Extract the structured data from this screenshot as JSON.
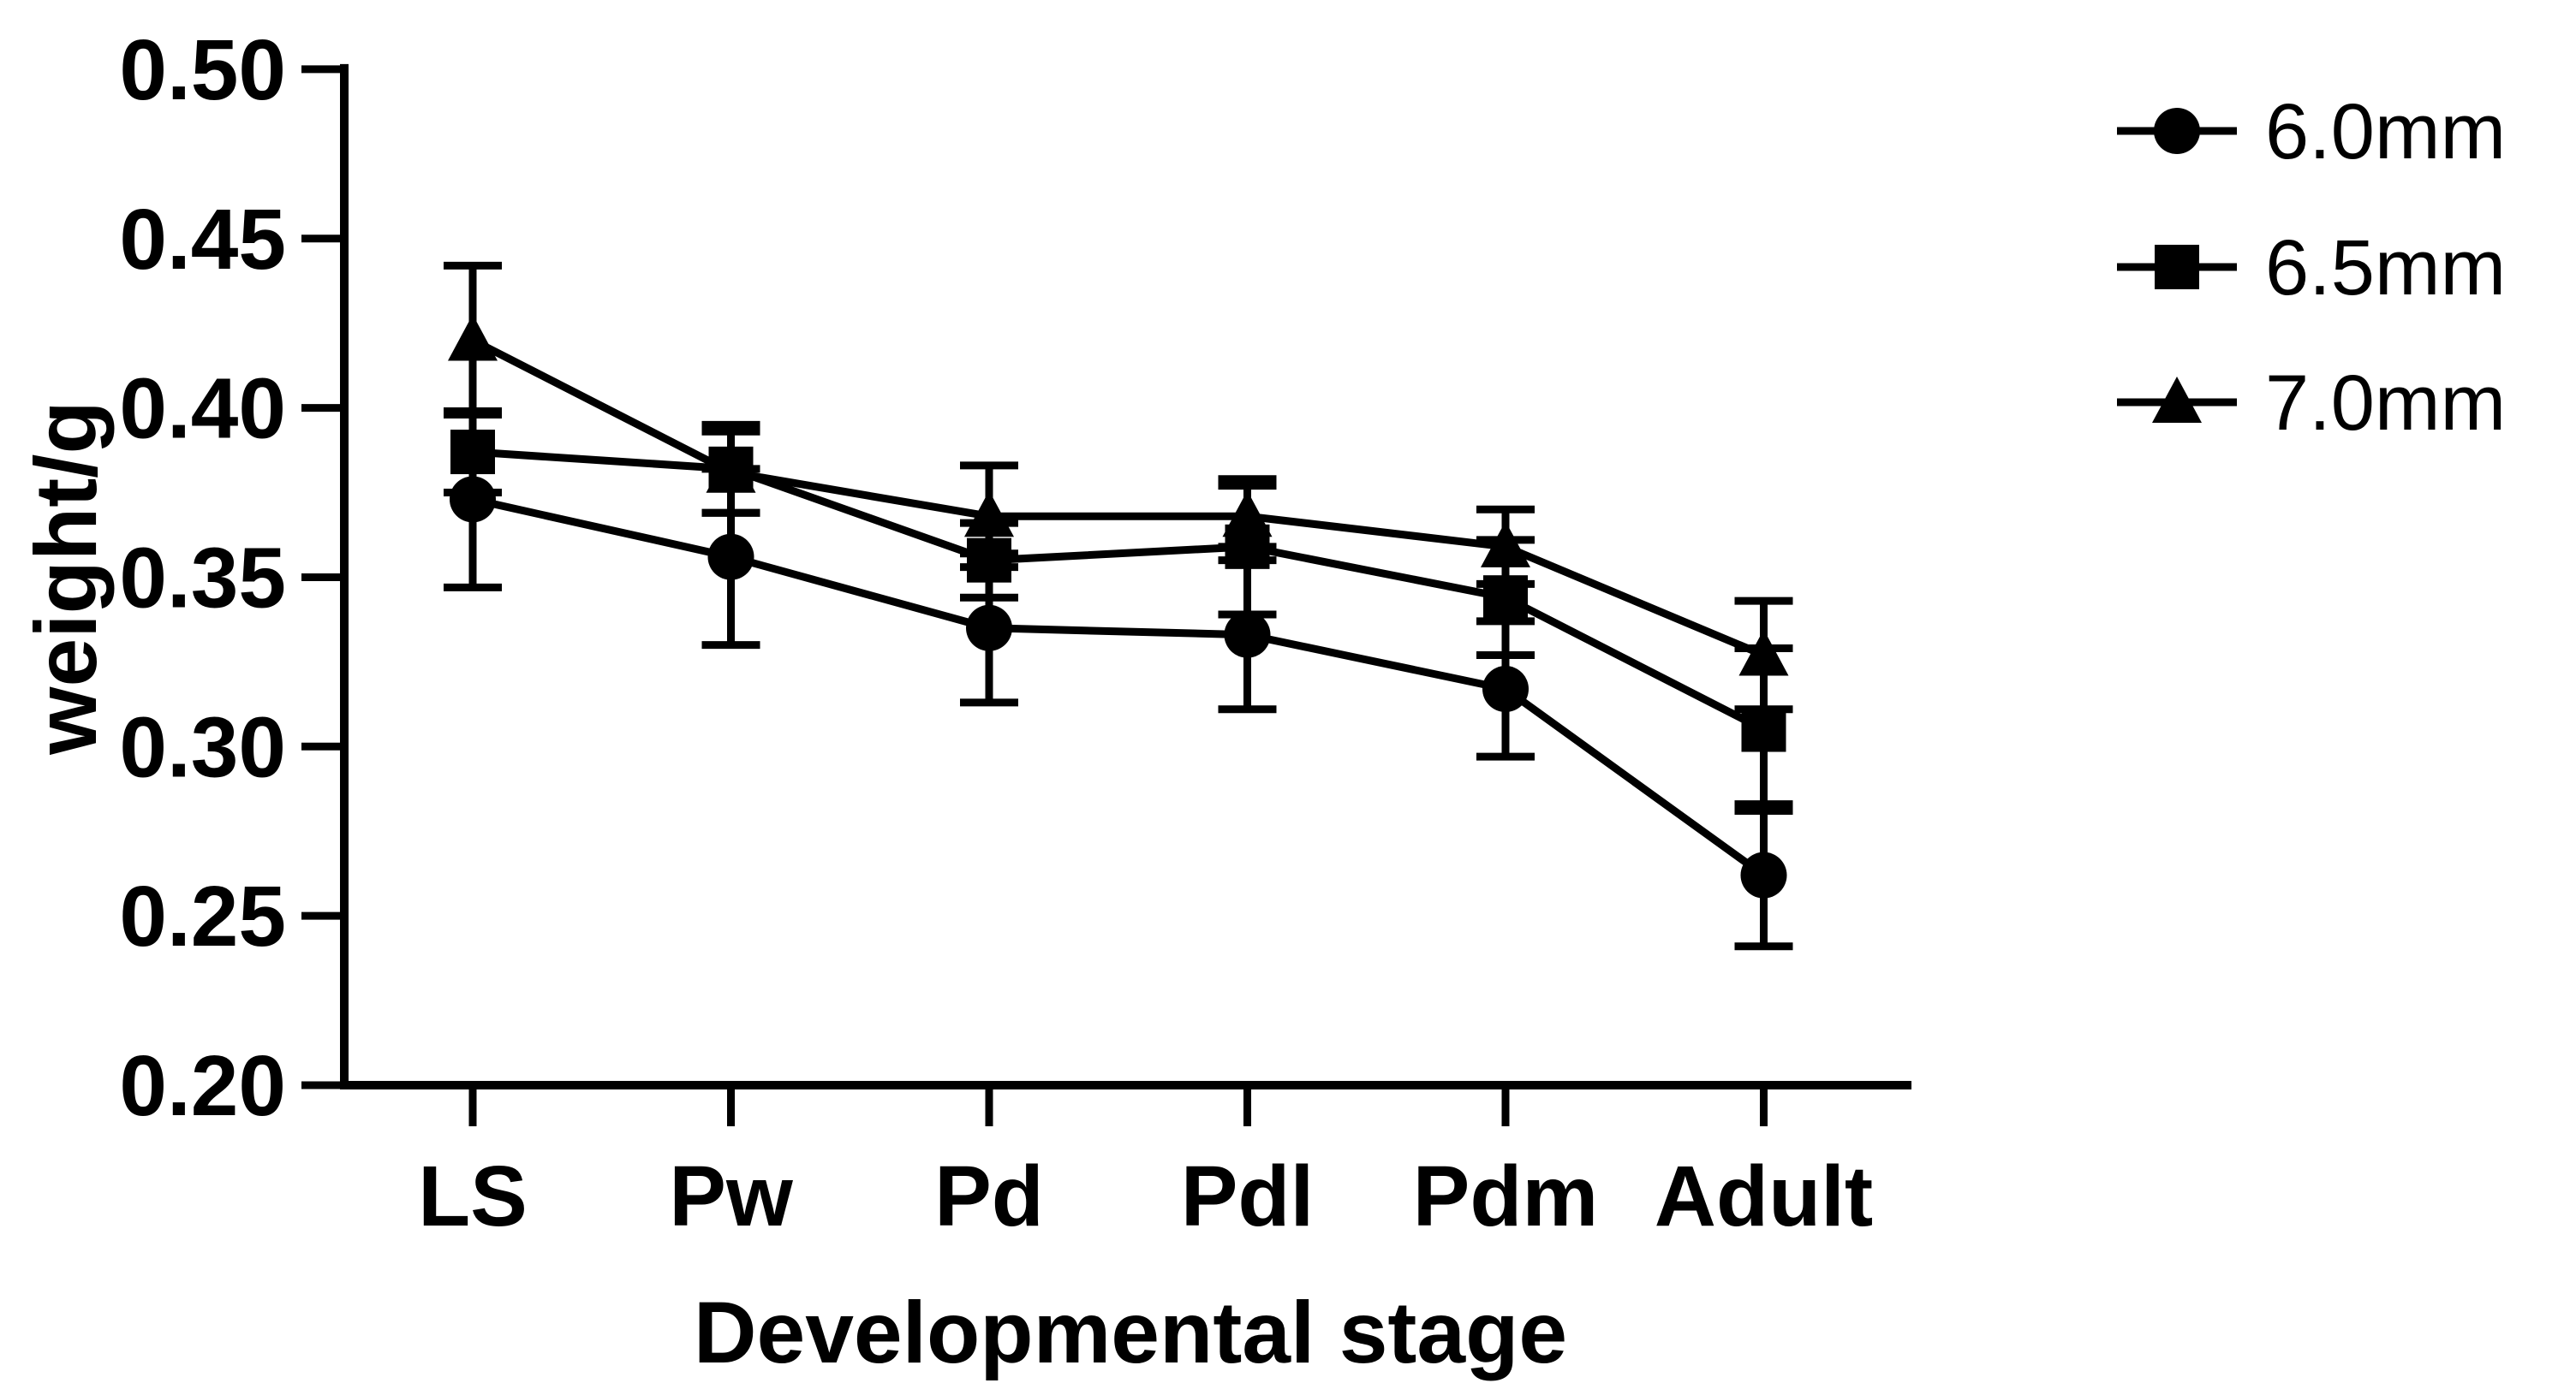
{
  "figure": {
    "background": "#ffffff",
    "foreground": "#000000"
  },
  "chart_data": {
    "type": "line",
    "title": "",
    "xlabel": "Developmental stage",
    "ylabel": "weight/g",
    "categories": [
      "LS",
      "Pw",
      "Pd",
      "Pdl",
      "Pdm",
      "Adult"
    ],
    "y_ticks": [
      0.2,
      0.25,
      0.3,
      0.35,
      0.4,
      0.45,
      0.5
    ],
    "y_tick_labels": [
      "0.20",
      "0.25",
      "0.30",
      "0.35",
      "0.40",
      "0.45",
      "0.50"
    ],
    "ylim": [
      0.2,
      0.5
    ],
    "grid": false,
    "legend_position": "right",
    "error_bars": "symmetric, cap ends, shown per point",
    "marker_color": "#000000",
    "line_color": "#000000",
    "series": [
      {
        "name": "6.0mm",
        "marker": "circle",
        "values": [
          0.373,
          0.356,
          0.335,
          0.333,
          0.317,
          0.262
        ],
        "errors": [
          0.026,
          0.026,
          0.022,
          0.022,
          0.02,
          0.021
        ]
      },
      {
        "name": "6.5mm",
        "marker": "square",
        "values": [
          0.387,
          0.382,
          0.355,
          0.359,
          0.344,
          0.305
        ],
        "errors": [
          0.012,
          0.013,
          0.011,
          0.02,
          0.017,
          0.024
        ]
      },
      {
        "name": "7.0mm",
        "marker": "triangle",
        "values": [
          0.42,
          0.381,
          0.368,
          0.368,
          0.359,
          0.327
        ],
        "errors": [
          0.022,
          0.012,
          0.015,
          0.009,
          0.011,
          0.016
        ]
      }
    ]
  }
}
